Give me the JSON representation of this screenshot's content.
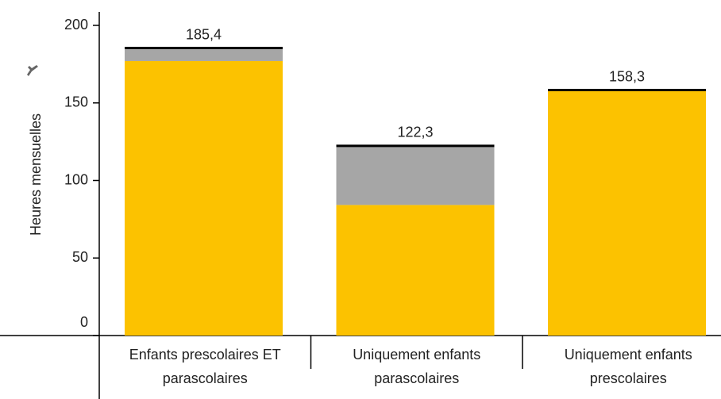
{
  "chart_data": {
    "type": "stacked_bar",
    "y_label": "Heures mensuelles",
    "categories": [
      "Enfants prescolaires ET parascolaires",
      "Uniquement enfants parascolaires",
      "Uniquement enfants prescolaires"
    ],
    "series": [
      {
        "color": "#fcc200",
        "values": [
          177.0,
          84.2,
          158.3
        ]
      },
      {
        "color": "#a6a6a6",
        "values": [
          8.4,
          38.1,
          0
        ]
      }
    ],
    "totals": [
      185.4,
      122.3,
      158.3
    ],
    "total_labels": [
      "185,4",
      "122,3",
      "158,3"
    ],
    "ylim": [
      0,
      200
    ],
    "yticks": [
      0,
      50,
      100,
      150,
      200
    ],
    "grid": false
  }
}
